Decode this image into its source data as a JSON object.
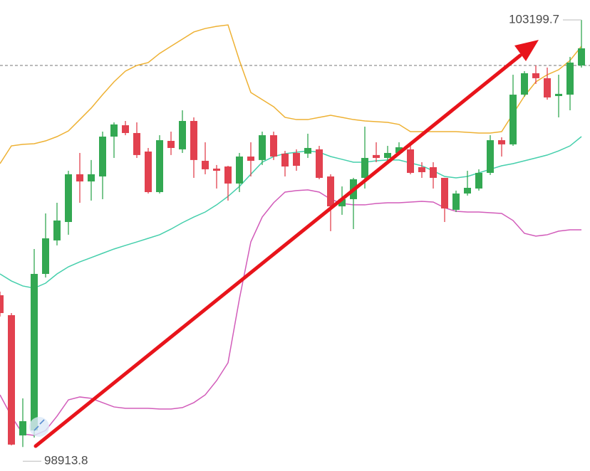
{
  "chart_data": {
    "type": "candlestick",
    "ylim": [
      98673,
      103400
    ],
    "up_color": "#33a852",
    "down_color": "#e2414f",
    "open": [
      100437,
      100237,
      99030,
      99080,
      100651,
      100987,
      101172,
      101651,
      101579,
      101629,
      102029,
      102143,
      102065,
      101879,
      101472,
      101986,
      101901,
      102186,
      101786,
      101708,
      101729,
      101558,
      101829,
      101794,
      102043,
      101858,
      101865,
      101858,
      101901,
      101629,
      101329,
      101401,
      101615,
      101844,
      101815,
      101865,
      101901,
      101722,
      101722,
      101615,
      101294,
      101458,
      101508,
      101665,
      101993,
      101951,
      102450,
      102665,
      102615,
      102436,
      102450,
      102743
    ],
    "high": [
      100473,
      100258,
      99402,
      100901,
      101258,
      101365,
      101686,
      101865,
      101794,
      102079,
      102172,
      102186,
      102172,
      101915,
      102043,
      102079,
      102293,
      102222,
      101972,
      101744,
      101736,
      101865,
      101972,
      102079,
      102079,
      101886,
      101901,
      102058,
      101936,
      101651,
      101529,
      101615,
      102129,
      101972,
      101936,
      101972,
      101936,
      101772,
      101772,
      101615,
      101487,
      101686,
      101701,
      102043,
      102022,
      102650,
      102686,
      102743,
      102722,
      102650,
      102829,
      103199.7
    ],
    "low": [
      100223,
      98930,
      98913.8,
      99009,
      100615,
      100937,
      101044,
      101365,
      101387,
      101401,
      101815,
      102043,
      101815,
      101458,
      101458,
      101844,
      101865,
      101615,
      101651,
      101508,
      101387,
      101472,
      101629,
      101744,
      101794,
      101629,
      101686,
      101815,
      101601,
      101080,
      101244,
      101101,
      101508,
      101772,
      101794,
      101844,
      101651,
      101615,
      101508,
      101172,
      101272,
      101437,
      101487,
      101644,
      101829,
      101936,
      102429,
      102558,
      102400,
      102222,
      102293,
      102722
    ],
    "close": [
      100258,
      98938,
      99173,
      100651,
      101008,
      101187,
      101651,
      101579,
      101651,
      102029,
      102151,
      102065,
      101844,
      101472,
      101993,
      101915,
      102186,
      101794,
      101701,
      101686,
      101558,
      101829,
      101786,
      102043,
      101829,
      101729,
      101736,
      101915,
      101615,
      101329,
      101401,
      101601,
      101815,
      101815,
      101865,
      101922,
      101665,
      101672,
      101615,
      101308,
      101458,
      101515,
      101665,
      101993,
      101951,
      102450,
      102665,
      102615,
      102422,
      102458,
      102772,
      102915
    ],
    "bands": [
      {
        "color": "#eeb133",
        "values": [
          101758,
          101936,
          101951,
          101958,
          101986,
          102029,
          102086,
          102200,
          102315,
          102450,
          102579,
          102686,
          102743,
          102772,
          102864,
          102936,
          103007,
          103079,
          103114,
          103136,
          103150,
          102793,
          102472,
          102400,
          102329,
          102222,
          102200,
          102200,
          102222,
          102243,
          102222,
          102200,
          102186,
          102179,
          102172,
          102151,
          102079,
          102079,
          102079,
          102079,
          102079,
          102072,
          102065,
          102065,
          102079,
          102258,
          102436,
          102579,
          102650,
          102700,
          102793,
          102936
        ]
      },
      {
        "color": "#45cfac",
        "values": [
          100651,
          100580,
          100530,
          100508,
          100558,
          100651,
          100722,
          100772,
          100815,
          100858,
          100901,
          100937,
          100972,
          101008,
          101044,
          101101,
          101165,
          101222,
          101272,
          101344,
          101429,
          101529,
          101651,
          101772,
          101829,
          101858,
          101872,
          101886,
          101872,
          101829,
          101801,
          101772,
          101772,
          101786,
          101794,
          101794,
          101765,
          101736,
          101686,
          101629,
          101615,
          101629,
          101665,
          101701,
          101736,
          101758,
          101786,
          101815,
          101844,
          101886,
          101936,
          102029
        ]
      },
      {
        "color": "#d25cba",
        "values": [
          99437,
          99223,
          99045,
          99030,
          99080,
          99223,
          99387,
          99416,
          99402,
          99359,
          99316,
          99302,
          99302,
          99302,
          99295,
          99295,
          99309,
          99359,
          99437,
          99580,
          99759,
          100401,
          100972,
          101222,
          101365,
          101472,
          101487,
          101494,
          101472,
          101401,
          101358,
          101344,
          101344,
          101358,
          101365,
          101365,
          101372,
          101379,
          101372,
          101315,
          101279,
          101272,
          101272,
          101265,
          101258,
          101187,
          101058,
          101030,
          101044,
          101080,
          101094,
          101094
        ]
      }
    ],
    "current_price": 102743,
    "max_label": 103199.7,
    "min_label": 98913.8
  }
}
